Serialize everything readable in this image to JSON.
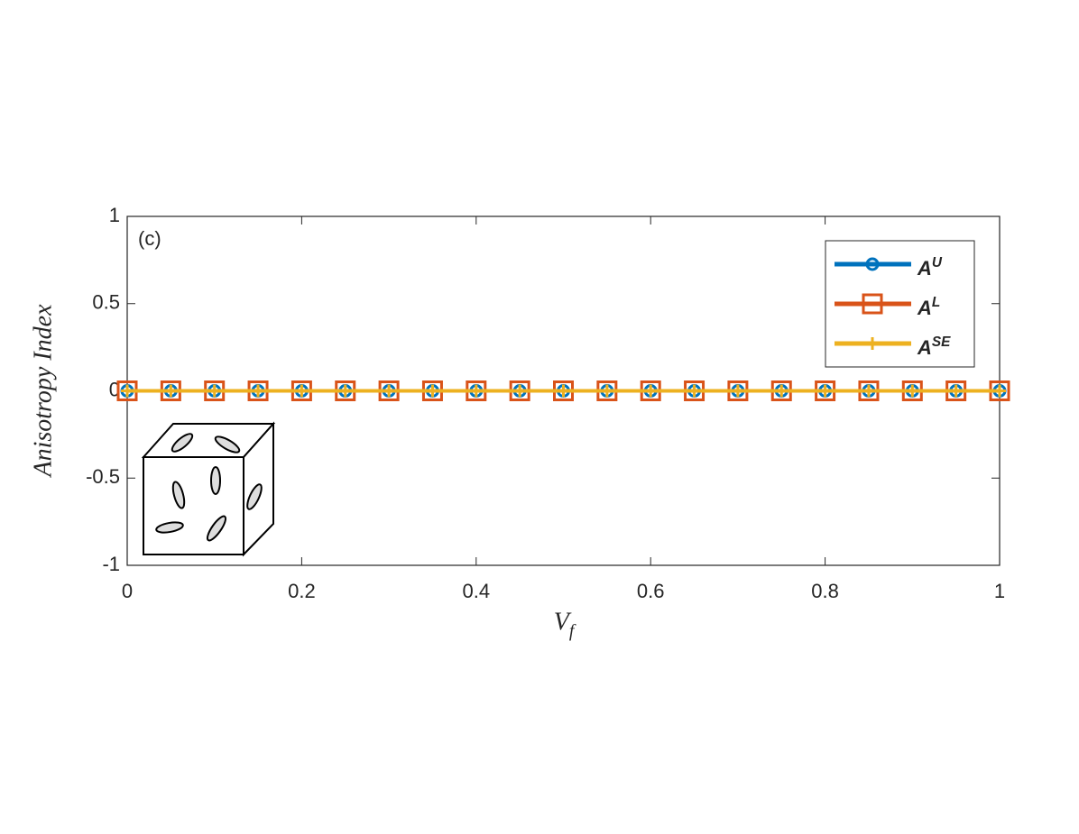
{
  "chart_data": {
    "type": "line",
    "annotation": "(c)",
    "x_label": "V_f",
    "y_label": "Anisotropy Index",
    "x": [
      0,
      0.05,
      0.1,
      0.15,
      0.2,
      0.25,
      0.3,
      0.35,
      0.4,
      0.45,
      0.5,
      0.55,
      0.6,
      0.65,
      0.7,
      0.75,
      0.8,
      0.85,
      0.9,
      0.95,
      1
    ],
    "series": [
      {
        "name": "A^U",
        "color": "#0072bd",
        "marker": "circle",
        "values": [
          0,
          0,
          0,
          0,
          0,
          0,
          0,
          0,
          0,
          0,
          0,
          0,
          0,
          0,
          0,
          0,
          0,
          0,
          0,
          0,
          0
        ]
      },
      {
        "name": "A^L",
        "color": "#d95319",
        "marker": "square",
        "values": [
          0,
          0,
          0,
          0,
          0,
          0,
          0,
          0,
          0,
          0,
          0,
          0,
          0,
          0,
          0,
          0,
          0,
          0,
          0,
          0,
          0
        ]
      },
      {
        "name": "A^SE",
        "color": "#edb120",
        "marker": "plus",
        "values": [
          0,
          0,
          0,
          0,
          0,
          0,
          0,
          0,
          0,
          0,
          0,
          0,
          0,
          0,
          0,
          0,
          0,
          0,
          0,
          0,
          0
        ]
      }
    ],
    "xlim": [
      0,
      1
    ],
    "xticks": [
      0,
      0.2,
      0.4,
      0.6,
      0.8,
      1
    ],
    "ylim": [
      -1,
      1
    ],
    "yticks": [
      -1,
      -0.5,
      0,
      0.5,
      1
    ],
    "legend": "upper right"
  }
}
